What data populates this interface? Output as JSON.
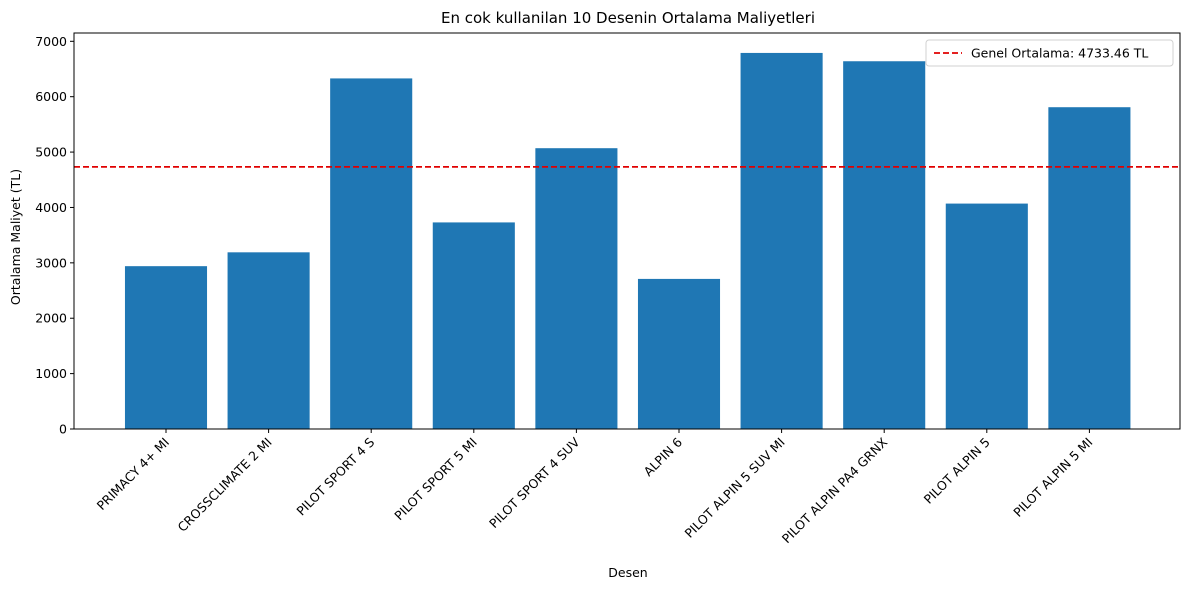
{
  "chart_data": {
    "type": "bar",
    "title": "En cok kullanilan 10 Desenin Ortalama Maliyetleri",
    "xlabel": "Desen",
    "ylabel": "Ortalama Maliyet (TL)",
    "categories": [
      "PRIMACY 4+ MI",
      "CROSSCLIMATE 2 MI",
      "PILOT SPORT 4 S",
      "PILOT SPORT 5 MI",
      "PILOT SPORT 4 SUV",
      "ALPIN 6",
      "PILOT ALPIN 5 SUV MI",
      "PILOT ALPIN PA4 GRNX",
      "PILOT ALPIN 5",
      "PILOT ALPIN 5 MI"
    ],
    "values": [
      2940,
      3190,
      6330,
      3730,
      5070,
      2710,
      6790,
      6640,
      4070,
      5810
    ],
    "ylim": [
      0,
      7150
    ],
    "yticks": [
      0,
      1000,
      2000,
      3000,
      4000,
      5000,
      6000,
      7000
    ],
    "bar_color": "#1f77b4",
    "reference_line": {
      "value": 4733.46,
      "label": "Genel Ortalama: 4733.46 TL",
      "color": "#e00000",
      "style": "dashed"
    },
    "legend_position": "top-right",
    "grid": false
  }
}
